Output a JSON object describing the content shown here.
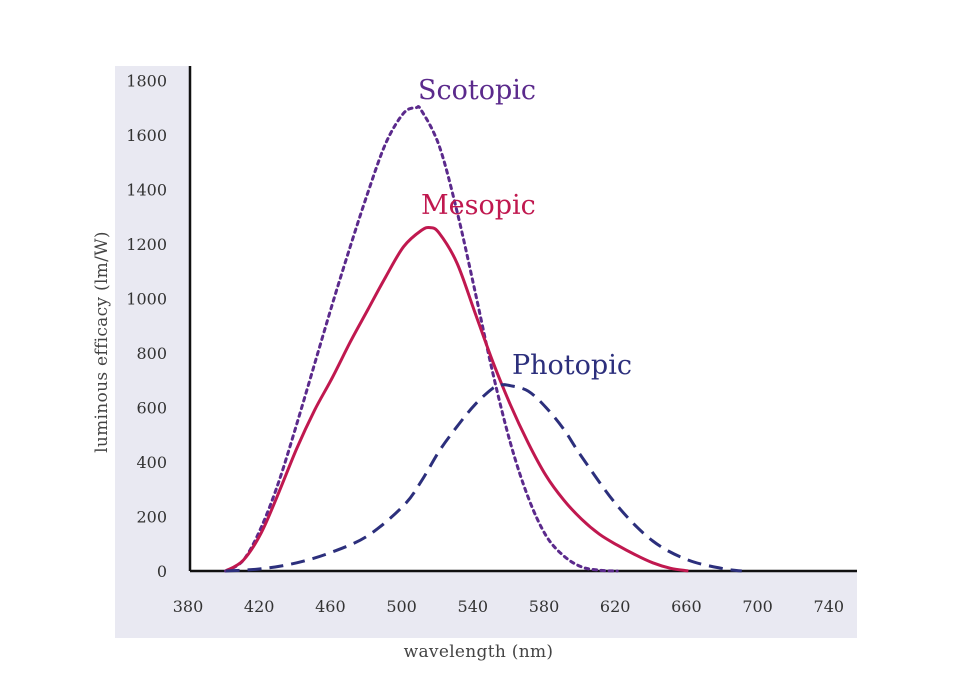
{
  "chart_data": {
    "type": "line",
    "title": "",
    "xlabel": "wavelength (nm)",
    "ylabel": "luminous efficacy (lm/W)",
    "xlim": [
      380,
      740
    ],
    "ylim": [
      0,
      1800
    ],
    "x_ticks": [
      380,
      420,
      460,
      500,
      540,
      580,
      620,
      660,
      700,
      740
    ],
    "y_ticks": [
      0,
      200,
      400,
      600,
      800,
      1000,
      1200,
      1400,
      1600,
      1800
    ],
    "grid": false,
    "series": [
      {
        "name": "Scotopic",
        "label": "Scotopic",
        "color": "#5b2a8c",
        "style": "dotted",
        "x": [
          400,
          410,
          420,
          430,
          440,
          450,
          460,
          470,
          480,
          490,
          500,
          507,
          510,
          520,
          530,
          540,
          550,
          560,
          570,
          580,
          590,
          600,
          610,
          620
        ],
        "y": [
          0,
          40,
          160,
          330,
          540,
          760,
          980,
          1190,
          1390,
          1570,
          1680,
          1700,
          1690,
          1560,
          1320,
          1030,
          730,
          470,
          270,
          130,
          55,
          15,
          3,
          0
        ]
      },
      {
        "name": "Mesopic",
        "label": "Mesopic",
        "color": "#c0184f",
        "style": "solid",
        "x": [
          400,
          410,
          420,
          430,
          440,
          450,
          460,
          470,
          480,
          490,
          500,
          510,
          515,
          520,
          530,
          540,
          550,
          560,
          570,
          580,
          590,
          600,
          610,
          620,
          630,
          640,
          650,
          660
        ],
        "y": [
          0,
          40,
          140,
          290,
          450,
          590,
          710,
          840,
          960,
          1080,
          1190,
          1250,
          1260,
          1240,
          1130,
          950,
          770,
          610,
          470,
          350,
          260,
          190,
          135,
          95,
          60,
          30,
          10,
          0
        ]
      },
      {
        "name": "Photopic",
        "label": "Photopic",
        "color": "#2c2f7c",
        "style": "dashed",
        "x": [
          400,
          420,
          440,
          460,
          480,
          500,
          510,
          520,
          530,
          540,
          550,
          555,
          560,
          570,
          580,
          590,
          600,
          620,
          640,
          660,
          680,
          690
        ],
        "y": [
          0,
          8,
          30,
          70,
          130,
          240,
          330,
          440,
          530,
          610,
          670,
          683,
          680,
          660,
          600,
          520,
          420,
          240,
          110,
          40,
          8,
          0
        ]
      }
    ]
  }
}
